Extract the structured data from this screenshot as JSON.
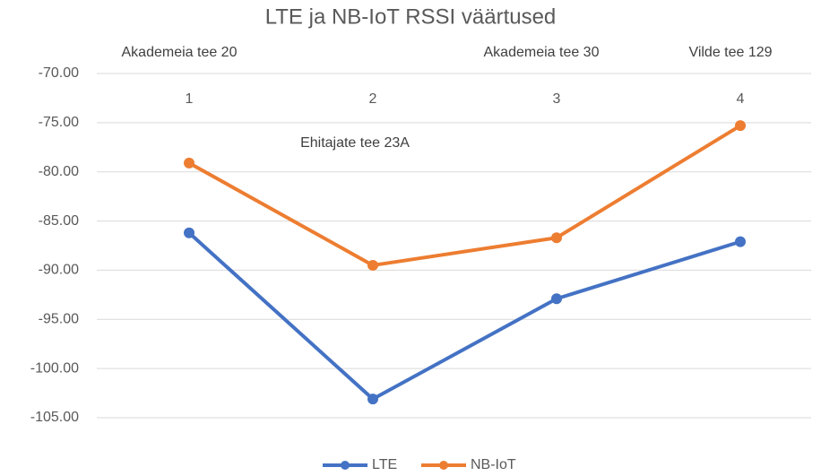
{
  "chart_data": {
    "type": "line",
    "title": "LTE ja NB-IoT RSSI väärtused",
    "categories": [
      "1",
      "2",
      "3",
      "4"
    ],
    "series": [
      {
        "name": "LTE",
        "color": "#4472c4",
        "values": [
          -86.2,
          -103.1,
          -92.9,
          -87.1
        ]
      },
      {
        "name": "NB-IoT",
        "color": "#ed7d31",
        "values": [
          -79.1,
          -89.5,
          -86.7,
          -75.3
        ]
      }
    ],
    "annotations": [
      "Akademeia tee 20",
      "Akademeia tee 30",
      "Vilde tee 129",
      "Ehitajate tee 23A"
    ],
    "ylim": [
      -105,
      -70
    ],
    "yticks": [
      {
        "value": -70,
        "label": "-70.00"
      },
      {
        "value": -75,
        "label": "-75.00"
      },
      {
        "value": -80,
        "label": "-80.00"
      },
      {
        "value": -85,
        "label": "-85.00"
      },
      {
        "value": -90,
        "label": "-90.00"
      },
      {
        "value": -95,
        "label": "-95.00"
      },
      {
        "value": -100,
        "label": "-100.00"
      },
      {
        "value": -105,
        "label": "-105.00"
      }
    ],
    "grid": true,
    "legend": "bottom"
  }
}
